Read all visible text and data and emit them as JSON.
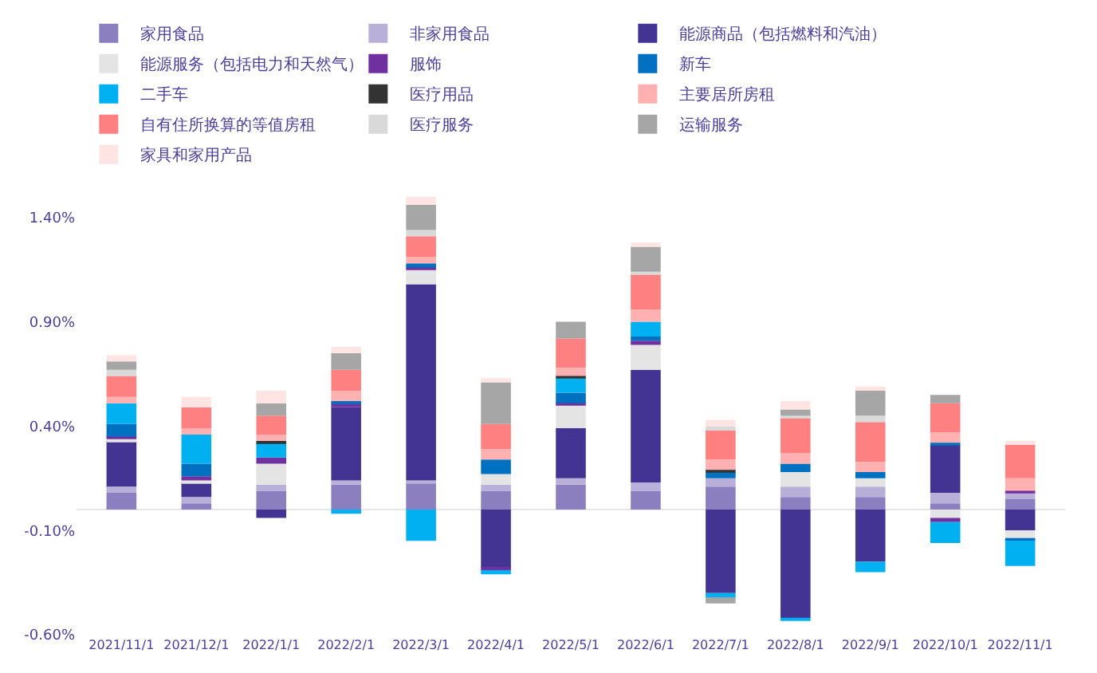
{
  "chart_data": {
    "type": "bar",
    "stacked": true,
    "legend": "top",
    "categories": [
      "2021/11/1",
      "2021/12/1",
      "2022/1/1",
      "2022/2/1",
      "2022/3/1",
      "2022/4/1",
      "2022/5/1",
      "2022/6/1",
      "2022/7/1",
      "2022/8/1",
      "2022/9/1",
      "2022/10/1",
      "2022/11/1"
    ],
    "ylim": [
      -0.6,
      1.5
    ],
    "yticks": [
      {
        "value": -0.6,
        "label": "-0.60%"
      },
      {
        "value": -0.1,
        "label": "-0.10%"
      },
      {
        "value": 0.4,
        "label": "0.40%"
      },
      {
        "value": 0.9,
        "label": "0.90%"
      },
      {
        "value": 1.4,
        "label": "1.40%"
      }
    ],
    "series": [
      {
        "name": "家用食品",
        "color": "#8b7fc0",
        "values": [
          0.08,
          0.03,
          0.09,
          0.12,
          0.13,
          0.09,
          0.12,
          0.09,
          0.11,
          0.06,
          0.06,
          0.03,
          0.05
        ]
      },
      {
        "name": "非家用食品",
        "color": "#b8b0d8",
        "values": [
          0.03,
          0.03,
          0.03,
          0.02,
          0.01,
          0.03,
          0.03,
          0.04,
          0.04,
          0.05,
          0.05,
          0.05,
          0.03
        ]
      },
      {
        "name": "能源商品（包括燃料和汽油）",
        "color": "#433493",
        "values": [
          0.22,
          0.07,
          -0.04,
          0.35,
          0.94,
          -0.28,
          0.24,
          0.54,
          -0.4,
          -0.52,
          -0.25,
          0.23,
          -0.1
        ]
      },
      {
        "name": "能源服务（包括电力和天然气）",
        "color": "#e4e4e4",
        "values": [
          0.01,
          0.01,
          0.1,
          null,
          0.07,
          0.05,
          0.11,
          0.12,
          null,
          0.07,
          0.04,
          -0.04,
          -0.04
        ]
      },
      {
        "name": "服饰",
        "color": "#7030a0",
        "values": [
          0.01,
          0.02,
          0.03,
          0.02,
          0.01,
          -0.01,
          0.01,
          0.02,
          null,
          null,
          null,
          -0.02,
          0.01
        ]
      },
      {
        "name": "新车",
        "color": "#0070c0",
        "values": [
          0.06,
          0.06,
          null,
          0.01,
          0.02,
          0.07,
          0.05,
          0.02,
          0.03,
          0.04,
          0.03,
          0.01,
          -0.01
        ]
      },
      {
        "name": "二手车",
        "color": "#00b0f0",
        "values": [
          0.1,
          0.14,
          0.07,
          -0.02,
          -0.15,
          -0.02,
          0.07,
          0.07,
          -0.02,
          -0.01,
          -0.05,
          -0.1,
          -0.12
        ]
      },
      {
        "name": "医疗用品",
        "color": "#333333",
        "values": [
          null,
          null,
          0.01,
          null,
          null,
          null,
          0.01,
          null,
          0.01,
          null,
          null,
          null,
          null
        ]
      },
      {
        "name": "主要居所房租",
        "color": "#ffb0b0",
        "values": [
          0.03,
          0.03,
          0.03,
          0.05,
          0.03,
          0.05,
          0.04,
          0.06,
          0.05,
          0.05,
          0.05,
          0.05,
          0.06
        ]
      },
      {
        "name": "自有住所换算的等值房租",
        "color": "#ff8080",
        "values": [
          0.1,
          0.1,
          0.09,
          0.1,
          0.1,
          0.12,
          0.14,
          0.17,
          0.14,
          0.17,
          0.19,
          0.14,
          0.16
        ]
      },
      {
        "name": "医疗服务",
        "color": "#d9d9d9",
        "values": [
          0.03,
          null,
          null,
          null,
          0.03,
          null,
          null,
          0.01,
          0.02,
          0.01,
          0.03,
          null,
          null
        ]
      },
      {
        "name": "运输服务",
        "color": "#a6a6a6",
        "values": [
          0.04,
          null,
          0.06,
          0.08,
          0.12,
          0.2,
          0.08,
          0.12,
          -0.03,
          0.03,
          0.12,
          0.04,
          null
        ]
      },
      {
        "name": "家具和家用产品",
        "color": "#ffe4e4",
        "values": [
          0.03,
          0.05,
          0.06,
          0.03,
          0.04,
          0.02,
          null,
          0.02,
          0.03,
          0.04,
          0.02,
          null,
          0.02
        ]
      }
    ]
  }
}
